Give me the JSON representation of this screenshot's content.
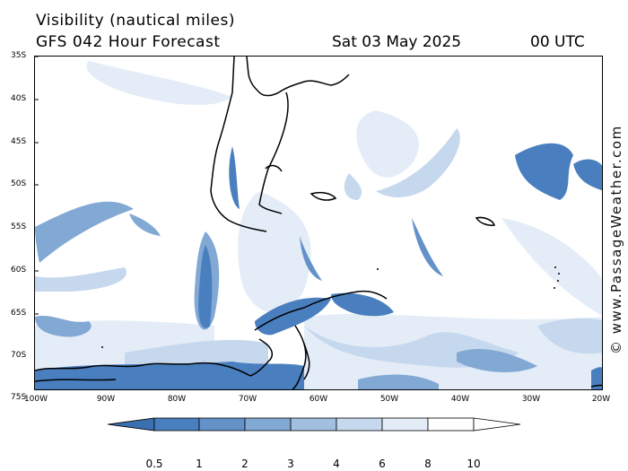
{
  "header": {
    "title": "Visibility (nautical miles)",
    "subtitle": "GFS 042 Hour Forecast",
    "date": "Sat 03 May 2025",
    "time": "00 UTC"
  },
  "watermark": "© www.PassageWeather.com",
  "map": {
    "lat_labels": [
      "35S",
      "40S",
      "45S",
      "50S",
      "55S",
      "60S",
      "65S",
      "70S",
      "75S"
    ],
    "lon_labels": [
      "100W",
      "90W",
      "80W",
      "70W",
      "60W",
      "50W",
      "40W",
      "30W",
      "20W"
    ],
    "land_color": "#ffffff",
    "coastline_color": "#000000"
  },
  "legend": {
    "labels": [
      "0.5",
      "1",
      "2",
      "3",
      "4",
      "6",
      "8",
      "10"
    ],
    "colors": [
      "#3a6fb0",
      "#4a7fbf",
      "#6492c8",
      "#82a8d4",
      "#a3bfe0",
      "#c6d8ee",
      "#e4edf7",
      "#ffffff"
    ]
  }
}
